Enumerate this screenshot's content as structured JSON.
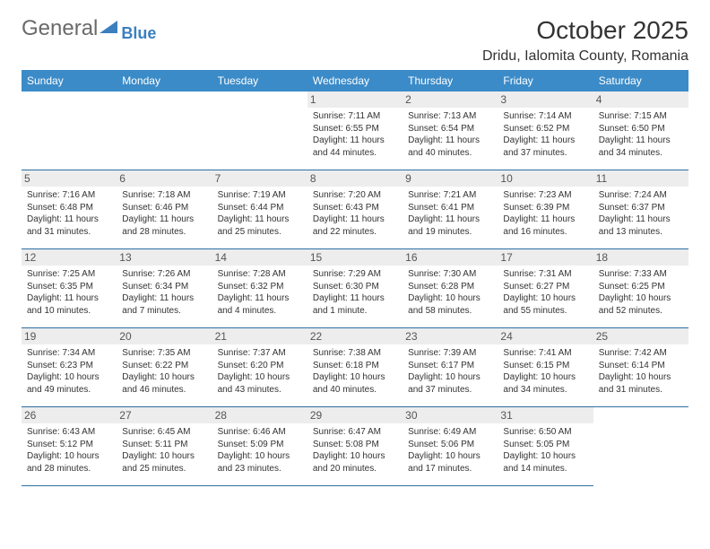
{
  "brand": {
    "word1": "General",
    "word2": "Blue"
  },
  "title": "October 2025",
  "location": "Dridu, Ialomita County, Romania",
  "colors": {
    "header_bg": "#3b8bc8",
    "header_text": "#ffffff",
    "border": "#2f6fa0",
    "daynum_bg": "#ededed",
    "text": "#333333",
    "logo_gray": "#6a6a6a",
    "logo_blue": "#3b7fbf",
    "background": "#ffffff"
  },
  "typography": {
    "title_fontsize": 28,
    "location_fontsize": 16,
    "header_fontsize": 12,
    "daynum_fontsize": 12,
    "info_fontsize": 10
  },
  "weekdays": [
    "Sunday",
    "Monday",
    "Tuesday",
    "Wednesday",
    "Thursday",
    "Friday",
    "Saturday"
  ],
  "leading_blanks": 3,
  "days": [
    {
      "n": "1",
      "sr": "7:11 AM",
      "ss": "6:55 PM",
      "dl": "11 hours and 44 minutes."
    },
    {
      "n": "2",
      "sr": "7:13 AM",
      "ss": "6:54 PM",
      "dl": "11 hours and 40 minutes."
    },
    {
      "n": "3",
      "sr": "7:14 AM",
      "ss": "6:52 PM",
      "dl": "11 hours and 37 minutes."
    },
    {
      "n": "4",
      "sr": "7:15 AM",
      "ss": "6:50 PM",
      "dl": "11 hours and 34 minutes."
    },
    {
      "n": "5",
      "sr": "7:16 AM",
      "ss": "6:48 PM",
      "dl": "11 hours and 31 minutes."
    },
    {
      "n": "6",
      "sr": "7:18 AM",
      "ss": "6:46 PM",
      "dl": "11 hours and 28 minutes."
    },
    {
      "n": "7",
      "sr": "7:19 AM",
      "ss": "6:44 PM",
      "dl": "11 hours and 25 minutes."
    },
    {
      "n": "8",
      "sr": "7:20 AM",
      "ss": "6:43 PM",
      "dl": "11 hours and 22 minutes."
    },
    {
      "n": "9",
      "sr": "7:21 AM",
      "ss": "6:41 PM",
      "dl": "11 hours and 19 minutes."
    },
    {
      "n": "10",
      "sr": "7:23 AM",
      "ss": "6:39 PM",
      "dl": "11 hours and 16 minutes."
    },
    {
      "n": "11",
      "sr": "7:24 AM",
      "ss": "6:37 PM",
      "dl": "11 hours and 13 minutes."
    },
    {
      "n": "12",
      "sr": "7:25 AM",
      "ss": "6:35 PM",
      "dl": "11 hours and 10 minutes."
    },
    {
      "n": "13",
      "sr": "7:26 AM",
      "ss": "6:34 PM",
      "dl": "11 hours and 7 minutes."
    },
    {
      "n": "14",
      "sr": "7:28 AM",
      "ss": "6:32 PM",
      "dl": "11 hours and 4 minutes."
    },
    {
      "n": "15",
      "sr": "7:29 AM",
      "ss": "6:30 PM",
      "dl": "11 hours and 1 minute."
    },
    {
      "n": "16",
      "sr": "7:30 AM",
      "ss": "6:28 PM",
      "dl": "10 hours and 58 minutes."
    },
    {
      "n": "17",
      "sr": "7:31 AM",
      "ss": "6:27 PM",
      "dl": "10 hours and 55 minutes."
    },
    {
      "n": "18",
      "sr": "7:33 AM",
      "ss": "6:25 PM",
      "dl": "10 hours and 52 minutes."
    },
    {
      "n": "19",
      "sr": "7:34 AM",
      "ss": "6:23 PM",
      "dl": "10 hours and 49 minutes."
    },
    {
      "n": "20",
      "sr": "7:35 AM",
      "ss": "6:22 PM",
      "dl": "10 hours and 46 minutes."
    },
    {
      "n": "21",
      "sr": "7:37 AM",
      "ss": "6:20 PM",
      "dl": "10 hours and 43 minutes."
    },
    {
      "n": "22",
      "sr": "7:38 AM",
      "ss": "6:18 PM",
      "dl": "10 hours and 40 minutes."
    },
    {
      "n": "23",
      "sr": "7:39 AM",
      "ss": "6:17 PM",
      "dl": "10 hours and 37 minutes."
    },
    {
      "n": "24",
      "sr": "7:41 AM",
      "ss": "6:15 PM",
      "dl": "10 hours and 34 minutes."
    },
    {
      "n": "25",
      "sr": "7:42 AM",
      "ss": "6:14 PM",
      "dl": "10 hours and 31 minutes."
    },
    {
      "n": "26",
      "sr": "6:43 AM",
      "ss": "5:12 PM",
      "dl": "10 hours and 28 minutes."
    },
    {
      "n": "27",
      "sr": "6:45 AM",
      "ss": "5:11 PM",
      "dl": "10 hours and 25 minutes."
    },
    {
      "n": "28",
      "sr": "6:46 AM",
      "ss": "5:09 PM",
      "dl": "10 hours and 23 minutes."
    },
    {
      "n": "29",
      "sr": "6:47 AM",
      "ss": "5:08 PM",
      "dl": "10 hours and 20 minutes."
    },
    {
      "n": "30",
      "sr": "6:49 AM",
      "ss": "5:06 PM",
      "dl": "10 hours and 17 minutes."
    },
    {
      "n": "31",
      "sr": "6:50 AM",
      "ss": "5:05 PM",
      "dl": "10 hours and 14 minutes."
    }
  ],
  "labels": {
    "sunrise": "Sunrise: ",
    "sunset": "Sunset: ",
    "daylight": "Daylight: "
  }
}
